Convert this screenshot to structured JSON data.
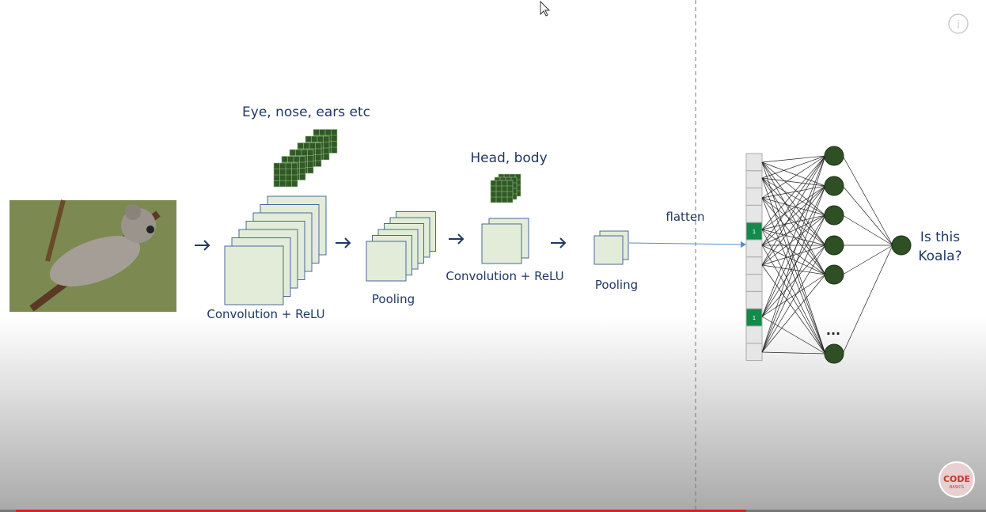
{
  "header": {
    "features_low": "Eye, nose, ears etc",
    "features_high": "Head, body"
  },
  "stages": [
    {
      "label": "Convolution + ReLU"
    },
    {
      "label": "Pooling"
    },
    {
      "label": "Convolution + ReLU"
    },
    {
      "label": "Pooling"
    }
  ],
  "flatten": {
    "label": "flatten",
    "cells": [
      "1",
      "1"
    ]
  },
  "network": {
    "ellipsis": "...",
    "output": [
      "Is this",
      "Koala?"
    ]
  },
  "logo": {
    "lines": [
      "CODE",
      "BASICS"
    ]
  }
}
